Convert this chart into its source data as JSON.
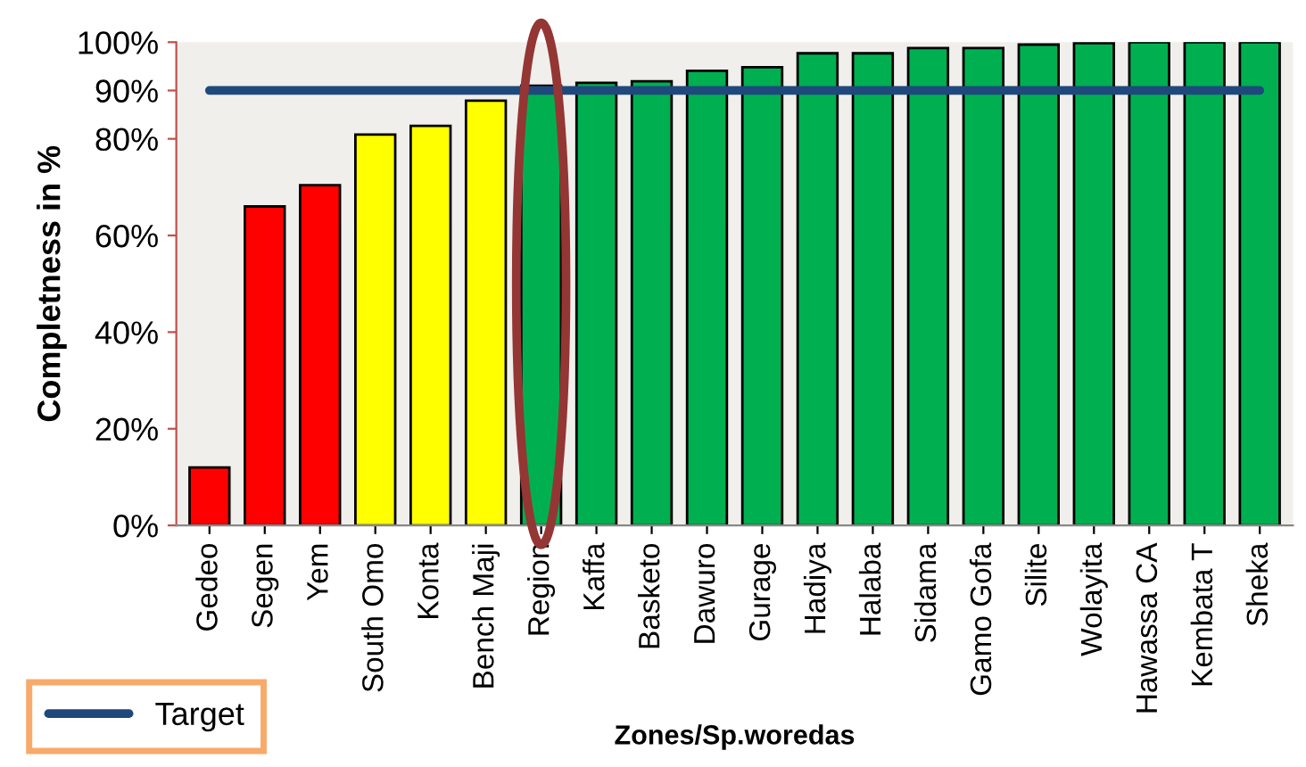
{
  "chart_data": {
    "type": "bar",
    "xlabel": "Zones/Sp.woredas",
    "ylabel": "Completness in %",
    "categories": [
      "Gedeo",
      "Segen",
      "Yem",
      "South Omo",
      "Konta",
      "Bench Maji",
      "Region",
      "Kaffa",
      "Basketo",
      "Dawuro",
      "Gurage",
      "Hadiya",
      "Halaba",
      "Sidama",
      "Gamo Gofa",
      "Silite",
      "Wolayita",
      "Hawassa CA",
      "Kembata T",
      "Sheka"
    ],
    "series": [
      {
        "colors": [
          "#ff0000",
          "#ff0000",
          "#ff0000",
          "#ffff00",
          "#ffff00",
          "#ffff00",
          "#00b050",
          "#00b050",
          "#00b050",
          "#00b050",
          "#00b050",
          "#00b050",
          "#00b050",
          "#00b050",
          "#00b050",
          "#00b050",
          "#00b050",
          "#00b050",
          "#00b050",
          "#00b050"
        ],
        "values": [
          12,
          66,
          70.4,
          80.9,
          82.7,
          87.9,
          91,
          91.6,
          91.9,
          94.1,
          94.8,
          97.7,
          97.7,
          98.8,
          98.8,
          99.5,
          99.8,
          100,
          100,
          100
        ]
      },
      {
        "type": "line",
        "name": "Target",
        "color": "#1f497d",
        "values": [
          90,
          90,
          90,
          90,
          90,
          90,
          90,
          90,
          90,
          90,
          90,
          90,
          90,
          90,
          90,
          90,
          90,
          90,
          90,
          90
        ]
      }
    ],
    "ylim": [
      0,
      100
    ],
    "yticks": [
      {
        "value": 0,
        "label": "0%"
      },
      {
        "value": 20,
        "label": "20%"
      },
      {
        "value": 40,
        "label": "40%"
      },
      {
        "value": 60,
        "label": "60%"
      },
      {
        "value": 80,
        "label": "80%"
      },
      {
        "value": 90,
        "label": "90%"
      },
      {
        "value": 100,
        "label": "100%"
      }
    ],
    "grid": false,
    "legend": "bottom left",
    "marker": "none",
    "line_style": "solid"
  }
}
